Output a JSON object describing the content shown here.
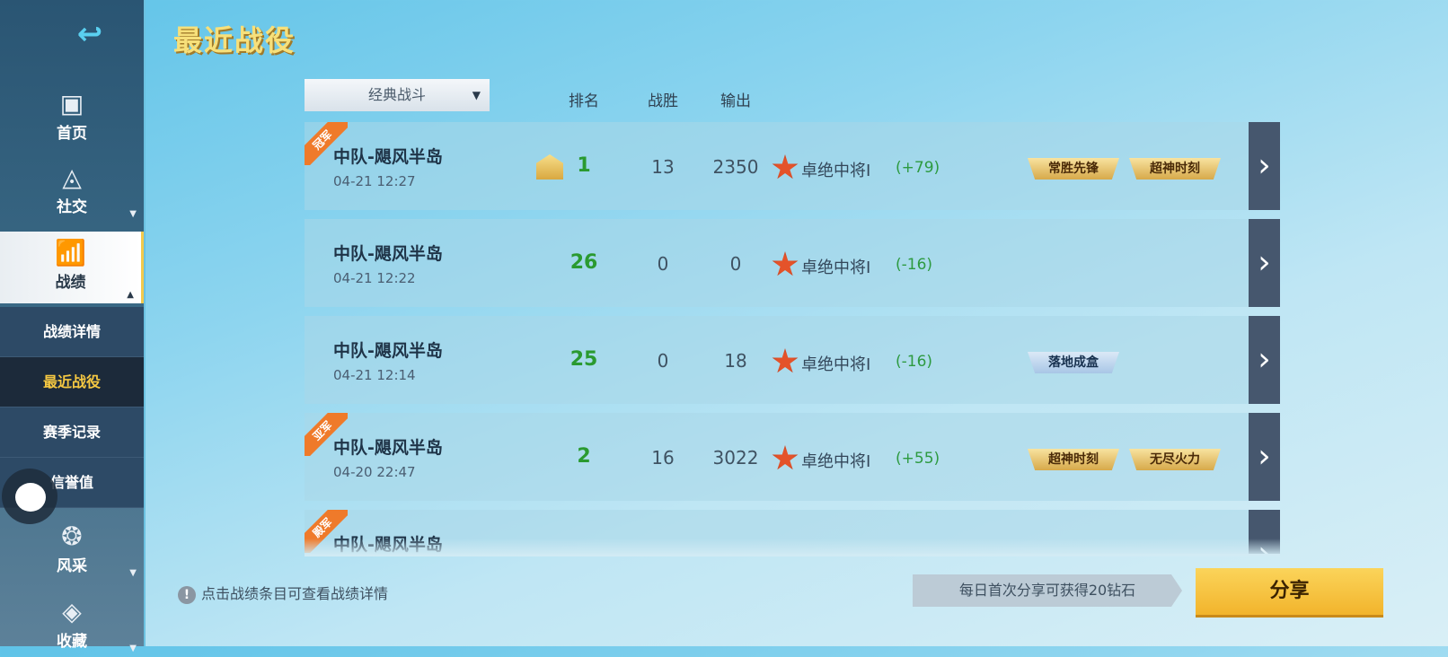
{
  "sidebar": {
    "back_icon": "back-arrow-icon",
    "items": [
      {
        "label": "首页",
        "icon": "id-card-icon"
      },
      {
        "label": "社交",
        "icon": "social-network-icon"
      },
      {
        "label": "战绩",
        "icon": "bar-chart-icon"
      },
      {
        "label": "风采",
        "icon": "phoenix-icon"
      },
      {
        "label": "收藏",
        "icon": "diamond-icon"
      }
    ],
    "subitems": [
      "战绩详情",
      "最近战役",
      "赛季记录",
      "信誉值"
    ],
    "active_item": "战绩",
    "active_subitem": "最近战役"
  },
  "header": {
    "title": "最近战役"
  },
  "filter": {
    "selected": "经典战斗"
  },
  "columns": {
    "rank": "排名",
    "wins": "战胜",
    "output": "输出"
  },
  "matches": [
    {
      "ribbon": "冠军",
      "name": "中队-飓风半岛",
      "time": "04-21 12:27",
      "mvp": true,
      "rank": "1",
      "wins": "13",
      "output": "2350",
      "tier": "卓绝中将I",
      "delta": "(+79)",
      "tags": [
        {
          "label": "常胜先锋",
          "style": "gold"
        },
        {
          "label": "超神时刻",
          "style": "gold"
        }
      ]
    },
    {
      "ribbon": "",
      "name": "中队-飓风半岛",
      "time": "04-21 12:22",
      "mvp": false,
      "rank": "26",
      "wins": "0",
      "output": "0",
      "tier": "卓绝中将I",
      "delta": "(-16)",
      "tags": []
    },
    {
      "ribbon": "",
      "name": "中队-飓风半岛",
      "time": "04-21 12:14",
      "mvp": false,
      "rank": "25",
      "wins": "0",
      "output": "18",
      "tier": "卓绝中将I",
      "delta": "(-16)",
      "tags": [
        {
          "label": "落地成盒",
          "style": "blue"
        }
      ]
    },
    {
      "ribbon": "亚军",
      "name": "中队-飓风半岛",
      "time": "04-20 22:47",
      "mvp": false,
      "rank": "2",
      "wins": "16",
      "output": "3022",
      "tier": "卓绝中将I",
      "delta": "(+55)",
      "tags": [
        {
          "label": "超神时刻",
          "style": "gold"
        },
        {
          "label": "无尽火力",
          "style": "gold"
        }
      ]
    },
    {
      "ribbon": "殿军",
      "name": "中队-飓风半岛",
      "time": "",
      "mvp": false,
      "rank": "",
      "wins": "",
      "output": "",
      "tier": "",
      "delta": "",
      "tags": []
    }
  ],
  "footer": {
    "hint": "点击战绩条目可查看战绩详情",
    "share_reward": "每日首次分享可获得20钻石",
    "share_label": "分享"
  },
  "colors": {
    "rank": "#2a9a30",
    "accent": "#f5c842",
    "ribbon": "#ef7a2a"
  }
}
